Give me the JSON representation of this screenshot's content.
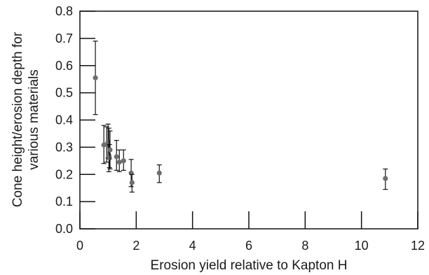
{
  "chart_data": {
    "type": "scatter",
    "title": "",
    "xlabel": "Erosion yield relative to Kapton H",
    "ylabel_lines": [
      "Cone height/erosion depth for",
      "various materials"
    ],
    "xlim": [
      0,
      12
    ],
    "ylim": [
      0,
      0.8
    ],
    "x_ticks": [
      0,
      2,
      4,
      6,
      8,
      10,
      12
    ],
    "y_ticks": [
      0.0,
      0.1,
      0.2,
      0.3,
      0.4,
      0.5,
      0.6,
      0.7,
      0.8
    ],
    "x_tick_labels": [
      "0",
      "2",
      "4",
      "6",
      "8",
      "10",
      "12"
    ],
    "y_tick_labels": [
      "0.0",
      "0.1",
      "0.2",
      "0.3",
      "0.4",
      "0.5",
      "0.6",
      "0.7",
      "0.8"
    ],
    "grid": false,
    "marker_color": "#6e6e6e",
    "errorbar_color": "#111111",
    "points": [
      {
        "x": 0.55,
        "y": 0.555,
        "ylow": 0.42,
        "yhigh": 0.69
      },
      {
        "x": 0.85,
        "y": 0.308,
        "ylow": 0.24,
        "yhigh": 0.38
      },
      {
        "x": 0.95,
        "y": 0.31,
        "ylow": 0.245,
        "yhigh": 0.375
      },
      {
        "x": 1.0,
        "y": 0.32,
        "ylow": 0.26,
        "yhigh": 0.385
      },
      {
        "x": 1.03,
        "y": 0.27,
        "ylow": 0.21,
        "yhigh": 0.37
      },
      {
        "x": 1.05,
        "y": 0.26,
        "ylow": 0.225,
        "yhigh": 0.31
      },
      {
        "x": 1.07,
        "y": 0.29,
        "ylow": 0.22,
        "yhigh": 0.36
      },
      {
        "x": 1.3,
        "y": 0.265,
        "ylow": 0.215,
        "yhigh": 0.325
      },
      {
        "x": 1.4,
        "y": 0.245,
        "ylow": 0.21,
        "yhigh": 0.29
      },
      {
        "x": 1.55,
        "y": 0.25,
        "ylow": 0.215,
        "yhigh": 0.29
      },
      {
        "x": 1.82,
        "y": 0.205,
        "ylow": 0.155,
        "yhigh": 0.255
      },
      {
        "x": 1.85,
        "y": 0.17,
        "ylow": 0.135,
        "yhigh": 0.2
      },
      {
        "x": 2.82,
        "y": 0.205,
        "ylow": 0.17,
        "yhigh": 0.235
      },
      {
        "x": 10.85,
        "y": 0.185,
        "ylow": 0.145,
        "yhigh": 0.22
      }
    ]
  }
}
